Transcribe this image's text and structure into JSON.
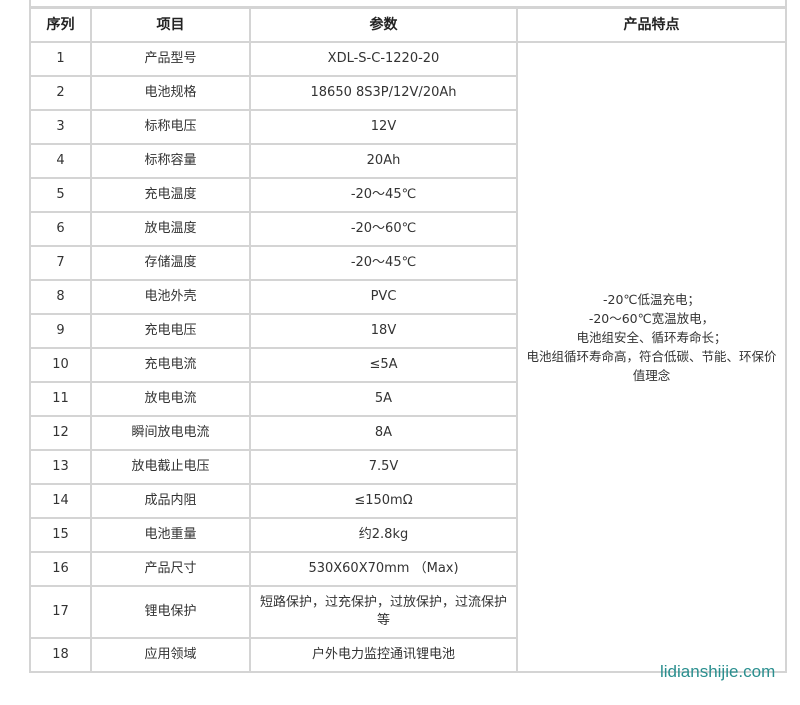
{
  "headers": [
    "序列",
    "项目",
    "参数",
    "产品特点"
  ],
  "rows": [
    {
      "no": "1",
      "item": "产品型号",
      "value": "XDL-S-C-1220-20"
    },
    {
      "no": "2",
      "item": "电池规格",
      "value": "18650 8S3P/12V/20Ah"
    },
    {
      "no": "3",
      "item": "标称电压",
      "value": "12V"
    },
    {
      "no": "4",
      "item": "标称容量",
      "value": "20Ah"
    },
    {
      "no": "5",
      "item": "充电温度",
      "value": "-20～45℃"
    },
    {
      "no": "6",
      "item": "放电温度",
      "value": "-20～60℃"
    },
    {
      "no": "7",
      "item": "存储温度",
      "value": "-20～45℃"
    },
    {
      "no": "8",
      "item": "电池外壳",
      "value": "PVC"
    },
    {
      "no": "9",
      "item": "充电电压",
      "value": "18V"
    },
    {
      "no": "10",
      "item": "充电电流",
      "value": "≤5A"
    },
    {
      "no": "11",
      "item": "放电电流",
      "value": "5A"
    },
    {
      "no": "12",
      "item": "瞬间放电电流",
      "value": "8A"
    },
    {
      "no": "13",
      "item": "放电截止电压",
      "value": "7.5V"
    },
    {
      "no": "14",
      "item": "成品内阻",
      "value": "≤150mΩ"
    },
    {
      "no": "15",
      "item": "电池重量",
      "value": "约2.8kg"
    },
    {
      "no": "16",
      "item": "产品尺寸",
      "value": "530X60X70mm （Max)"
    },
    {
      "no": "17",
      "item": "锂电保护",
      "value": "短路保护，过充保护，过放保护，过流保护等"
    },
    {
      "no": "18",
      "item": "应用领域",
      "value": "户外电力监控通讯锂电池"
    }
  ],
  "features": [
    "-20℃低温充电；",
    "-20～60℃宽温放电，",
    "电池组安全、循环寿命长；",
    "电池组循环寿命高，符合低碳、节能、环保价值理念"
  ],
  "watermark": "lidianshijie.com"
}
